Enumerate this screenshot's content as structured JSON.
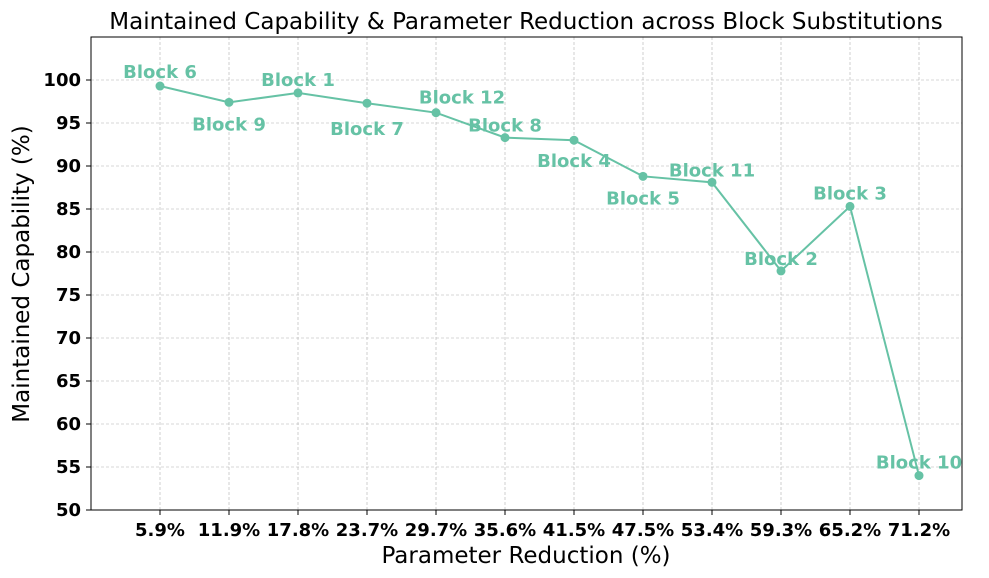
{
  "chart_data": {
    "type": "line",
    "title": "Maintained Capability & Parameter Reduction across Block Substitutions",
    "xlabel": "Parameter Reduction (%)",
    "ylabel": "Maintained Capability (%)",
    "categories": [
      "5.9%",
      "11.9%",
      "17.8%",
      "23.7%",
      "29.7%",
      "35.6%",
      "41.5%",
      "47.5%",
      "53.4%",
      "59.3%",
      "65.2%",
      "71.2%"
    ],
    "x": [
      5.9,
      11.9,
      17.8,
      23.7,
      29.7,
      35.6,
      41.5,
      47.5,
      53.4,
      59.3,
      65.2,
      71.2
    ],
    "series": [
      {
        "values": [
          99.3,
          97.4,
          98.5,
          97.3,
          96.2,
          93.3,
          93.0,
          88.8,
          88.1,
          77.8,
          85.3,
          54.0
        ],
        "point_labels": [
          "Block 6",
          "Block 9",
          "Block 1",
          "Block 7",
          "Block 12",
          "Block 8",
          "Block 4",
          "Block 5",
          "Block 11",
          "Block 2",
          "Block 3",
          "Block 10"
        ],
        "color": "#66c2a5"
      }
    ],
    "ylim": [
      50,
      105
    ],
    "yticks": [
      50,
      55,
      60,
      65,
      70,
      75,
      80,
      85,
      90,
      95,
      100
    ],
    "grid": true,
    "legend": "none"
  }
}
